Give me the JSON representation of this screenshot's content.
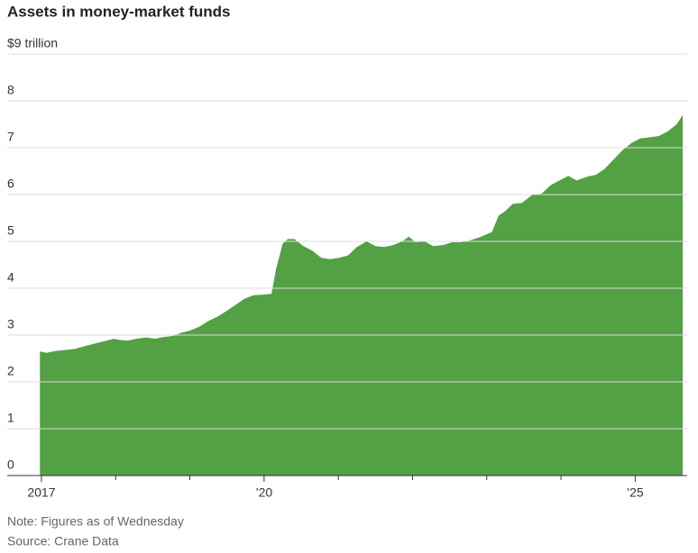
{
  "chart_data": {
    "type": "area",
    "title": "Assets in money-market funds",
    "note": "Note: Figures as of Wednesday",
    "source": "Source: Crane Data",
    "color": "#53a045",
    "grid": true,
    "xlim": [
      2016.6,
      2025.7
    ],
    "ylim": [
      0,
      9
    ],
    "yticks": [
      0,
      1,
      2,
      3,
      4,
      5,
      6,
      7,
      8,
      {
        "value": 9,
        "label": "$9 trillion"
      }
    ],
    "xticks": [
      2017,
      {
        "value": 2020,
        "label": "’20"
      },
      {
        "value": 2025,
        "label": "’25"
      }
    ],
    "xminor_ticks": [
      2018,
      2019,
      2021,
      2022,
      2023,
      2024
    ],
    "x": [
      2016.98,
      2017.07,
      2017.19,
      2017.32,
      2017.44,
      2017.62,
      2017.8,
      2017.98,
      2018.04,
      2018.16,
      2018.28,
      2018.41,
      2018.53,
      2018.65,
      2018.77,
      2018.89,
      2019.01,
      2019.13,
      2019.25,
      2019.38,
      2019.5,
      2019.62,
      2019.74,
      2019.86,
      2019.98,
      2020.1,
      2020.16,
      2020.25,
      2020.32,
      2020.41,
      2020.53,
      2020.65,
      2020.77,
      2020.89,
      2021.01,
      2021.13,
      2021.25,
      2021.38,
      2021.5,
      2021.62,
      2021.74,
      2021.86,
      2021.95,
      2022.04,
      2022.16,
      2022.28,
      2022.41,
      2022.53,
      2022.65,
      2022.77,
      2022.89,
      2023.07,
      2023.16,
      2023.25,
      2023.35,
      2023.47,
      2023.62,
      2023.74,
      2023.86,
      2023.98,
      2024.1,
      2024.21,
      2024.35,
      2024.47,
      2024.59,
      2024.71,
      2024.83,
      2024.95,
      2025.07,
      2025.19,
      2025.32,
      2025.44,
      2025.56,
      2025.64
    ],
    "values": [
      2.65,
      2.62,
      2.66,
      2.68,
      2.7,
      2.78,
      2.85,
      2.92,
      2.9,
      2.88,
      2.92,
      2.95,
      2.92,
      2.96,
      2.98,
      3.05,
      3.1,
      3.18,
      3.3,
      3.4,
      3.52,
      3.65,
      3.78,
      3.85,
      3.86,
      3.88,
      4.4,
      4.95,
      5.05,
      5.05,
      4.9,
      4.8,
      4.65,
      4.62,
      4.65,
      4.7,
      4.88,
      5.0,
      4.9,
      4.88,
      4.92,
      5.0,
      5.1,
      4.98,
      5.0,
      4.9,
      4.92,
      4.98,
      4.98,
      5.02,
      5.08,
      5.2,
      5.55,
      5.65,
      5.8,
      5.82,
      6.0,
      6.02,
      6.2,
      6.3,
      6.4,
      6.3,
      6.38,
      6.42,
      6.55,
      6.75,
      6.95,
      7.1,
      7.2,
      7.22,
      7.25,
      7.35,
      7.5,
      7.7
    ]
  }
}
